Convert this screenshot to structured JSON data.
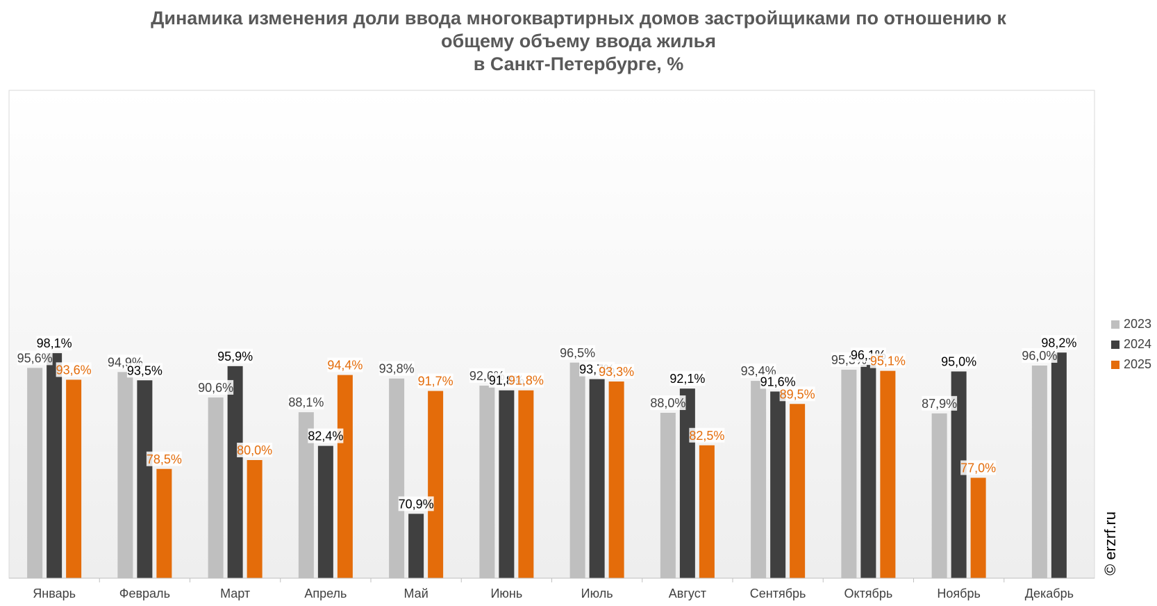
{
  "title_lines": [
    "Динамика изменения доли ввода многоквартирных домов застройщиками по отношению к",
    "общему объему ввода жилья",
    "в Санкт-Петербурге, %"
  ],
  "watermark": "© erzrf.ru",
  "colors": {
    "2023": "#BFBFBF",
    "2024": "#404040",
    "2025": "#E46C0A"
  },
  "chart_data": {
    "type": "bar",
    "title": "Динамика изменения доли ввода многоквартирных домов застройщиками по отношению к общему объему ввода жилья в Санкт-Петербурге, %",
    "categories": [
      "Январь",
      "Февраль",
      "Март",
      "Апрель",
      "Май",
      "Июнь",
      "Июль",
      "Август",
      "Сентябрь",
      "Октябрь",
      "Ноябрь",
      "Декабрь"
    ],
    "series": [
      {
        "name": "2023",
        "values": [
          95.6,
          94.9,
          90.6,
          88.1,
          93.8,
          92.6,
          96.5,
          88.0,
          93.4,
          95.3,
          87.9,
          96.0
        ],
        "labels": [
          "95,6%",
          "94,9%",
          "90,6%",
          "88,1%",
          "93,8%",
          "92,6%",
          "96,5%",
          "88,0%",
          "93,4%",
          "95,3%",
          "87,9%",
          "96,0%"
        ]
      },
      {
        "name": "2024",
        "values": [
          98.1,
          93.5,
          95.9,
          82.4,
          70.9,
          91.8,
          93.7,
          92.1,
          91.6,
          96.1,
          95.0,
          98.2
        ],
        "labels": [
          "98,1%",
          "93,5%",
          "95,9%",
          "82,4%",
          "70,9%",
          "91,8%",
          "93,7%",
          "92,1%",
          "91,6%",
          "96,1%",
          "95,0%",
          "98,2%"
        ]
      },
      {
        "name": "2025",
        "values": [
          93.6,
          78.5,
          80.0,
          94.4,
          91.7,
          91.8,
          93.3,
          82.5,
          89.5,
          95.1,
          77.0,
          null
        ],
        "labels": [
          "93,6%",
          "78,5%",
          "80,0%",
          "94,4%",
          "91,7%",
          "91,8%",
          "93,3%",
          "82,5%",
          "89,5%",
          "95,1%",
          "77,0%",
          null
        ]
      }
    ],
    "ylim": [
      60,
      100
    ],
    "xlabel": "",
    "ylabel": "",
    "legend_position": "right",
    "grid": false
  }
}
